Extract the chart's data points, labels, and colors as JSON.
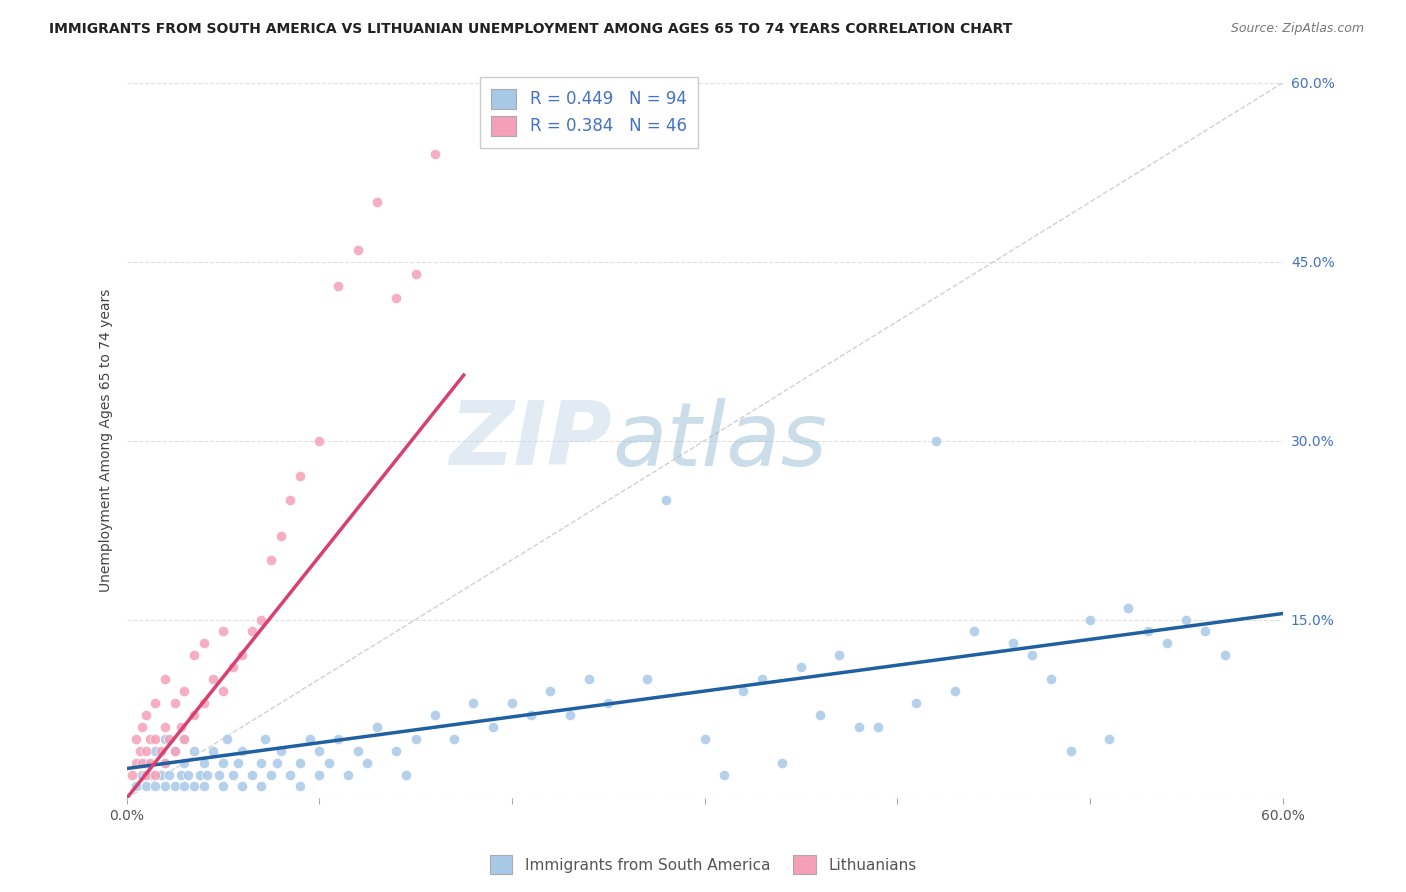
{
  "title": "IMMIGRANTS FROM SOUTH AMERICA VS LITHUANIAN UNEMPLOYMENT AMONG AGES 65 TO 74 YEARS CORRELATION CHART",
  "source": "Source: ZipAtlas.com",
  "ylabel": "Unemployment Among Ages 65 to 74 years",
  "xlim": [
    0,
    0.6
  ],
  "ylim": [
    0,
    0.6
  ],
  "xtick_positions": [
    0.0,
    0.1,
    0.2,
    0.3,
    0.4,
    0.5,
    0.6
  ],
  "xticklabels": [
    "0.0%",
    "",
    "",
    "",
    "",
    "",
    "60.0%"
  ],
  "ytick_right_positions": [
    0.0,
    0.15,
    0.3,
    0.45,
    0.6
  ],
  "ytick_right_labels": [
    "",
    "15.0%",
    "30.0%",
    "45.0%",
    "60.0%"
  ],
  "legend_blue_label": "R = 0.449   N = 94",
  "legend_pink_label": "R = 0.384   N = 46",
  "legend_bottom_label1": "Immigrants from South America",
  "legend_bottom_label2": "Lithuanians",
  "watermark": "ZIPatlas",
  "blue_color": "#a8c8e8",
  "pink_color": "#f4a0b8",
  "blue_line_color": "#2060a0",
  "pink_line_color": "#d84070",
  "diagonal_color": "#cccccc",
  "blue_line_x0": 0.0,
  "blue_line_y0": 0.025,
  "blue_line_x1": 0.6,
  "blue_line_y1": 0.155,
  "pink_line_x0": 0.0,
  "pink_line_y0": 0.0,
  "pink_line_x1": 0.175,
  "pink_line_y1": 0.355,
  "blue_x": [
    0.005,
    0.008,
    0.01,
    0.01,
    0.012,
    0.015,
    0.015,
    0.018,
    0.02,
    0.02,
    0.02,
    0.022,
    0.025,
    0.025,
    0.028,
    0.03,
    0.03,
    0.03,
    0.032,
    0.035,
    0.035,
    0.038,
    0.04,
    0.04,
    0.042,
    0.045,
    0.048,
    0.05,
    0.05,
    0.052,
    0.055,
    0.058,
    0.06,
    0.06,
    0.065,
    0.07,
    0.07,
    0.072,
    0.075,
    0.078,
    0.08,
    0.085,
    0.09,
    0.09,
    0.095,
    0.1,
    0.1,
    0.105,
    0.11,
    0.115,
    0.12,
    0.125,
    0.13,
    0.14,
    0.145,
    0.15,
    0.16,
    0.17,
    0.18,
    0.19,
    0.2,
    0.21,
    0.22,
    0.23,
    0.24,
    0.25,
    0.27,
    0.28,
    0.3,
    0.32,
    0.33,
    0.35,
    0.37,
    0.39,
    0.41,
    0.43,
    0.44,
    0.46,
    0.48,
    0.5,
    0.52,
    0.53,
    0.54,
    0.55,
    0.56,
    0.57,
    0.42,
    0.47,
    0.49,
    0.51,
    0.38,
    0.36,
    0.34,
    0.31
  ],
  "blue_y": [
    0.01,
    0.02,
    0.01,
    0.03,
    0.02,
    0.01,
    0.04,
    0.02,
    0.01,
    0.03,
    0.05,
    0.02,
    0.01,
    0.04,
    0.02,
    0.01,
    0.03,
    0.05,
    0.02,
    0.01,
    0.04,
    0.02,
    0.01,
    0.03,
    0.02,
    0.04,
    0.02,
    0.01,
    0.03,
    0.05,
    0.02,
    0.03,
    0.01,
    0.04,
    0.02,
    0.01,
    0.03,
    0.05,
    0.02,
    0.03,
    0.04,
    0.02,
    0.01,
    0.03,
    0.05,
    0.02,
    0.04,
    0.03,
    0.05,
    0.02,
    0.04,
    0.03,
    0.06,
    0.04,
    0.02,
    0.05,
    0.07,
    0.05,
    0.08,
    0.06,
    0.08,
    0.07,
    0.09,
    0.07,
    0.1,
    0.08,
    0.1,
    0.25,
    0.05,
    0.09,
    0.1,
    0.11,
    0.12,
    0.06,
    0.08,
    0.09,
    0.14,
    0.13,
    0.1,
    0.15,
    0.16,
    0.14,
    0.13,
    0.15,
    0.14,
    0.12,
    0.3,
    0.12,
    0.04,
    0.05,
    0.06,
    0.07,
    0.03,
    0.02
  ],
  "pink_x": [
    0.003,
    0.005,
    0.005,
    0.007,
    0.008,
    0.008,
    0.01,
    0.01,
    0.01,
    0.012,
    0.012,
    0.015,
    0.015,
    0.015,
    0.018,
    0.02,
    0.02,
    0.02,
    0.022,
    0.025,
    0.025,
    0.028,
    0.03,
    0.03,
    0.035,
    0.035,
    0.04,
    0.04,
    0.045,
    0.05,
    0.05,
    0.055,
    0.06,
    0.065,
    0.07,
    0.075,
    0.08,
    0.085,
    0.09,
    0.1,
    0.11,
    0.12,
    0.13,
    0.14,
    0.15,
    0.16
  ],
  "pink_y": [
    0.02,
    0.03,
    0.05,
    0.04,
    0.03,
    0.06,
    0.02,
    0.04,
    0.07,
    0.03,
    0.05,
    0.02,
    0.05,
    0.08,
    0.04,
    0.03,
    0.06,
    0.1,
    0.05,
    0.04,
    0.08,
    0.06,
    0.05,
    0.09,
    0.07,
    0.12,
    0.08,
    0.13,
    0.1,
    0.09,
    0.14,
    0.11,
    0.12,
    0.14,
    0.15,
    0.2,
    0.22,
    0.25,
    0.27,
    0.3,
    0.43,
    0.46,
    0.5,
    0.42,
    0.44,
    0.54
  ]
}
